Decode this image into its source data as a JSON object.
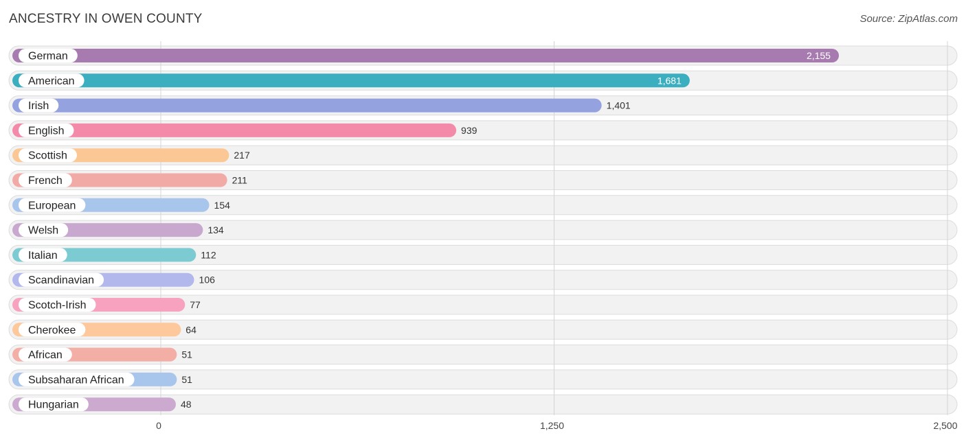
{
  "header": {
    "title": "ANCESTRY IN OWEN COUNTY",
    "source": "Source: ZipAtlas.com"
  },
  "chart_data": {
    "type": "bar",
    "orientation": "horizontal",
    "title": "ANCESTRY IN OWEN COUNTY",
    "categories": [
      "German",
      "American",
      "Irish",
      "English",
      "Scottish",
      "French",
      "European",
      "Welsh",
      "Italian",
      "Scandinavian",
      "Scotch-Irish",
      "Cherokee",
      "African",
      "Subsaharan African",
      "Hungarian"
    ],
    "values": [
      2155,
      1681,
      1401,
      939,
      217,
      211,
      154,
      134,
      112,
      106,
      77,
      64,
      51,
      51,
      48
    ],
    "value_labels": [
      "2,155",
      "1,681",
      "1,401",
      "939",
      "217",
      "211",
      "154",
      "134",
      "112",
      "106",
      "77",
      "64",
      "51",
      "51",
      "48"
    ],
    "colors": [
      "#a87bb0",
      "#3bafbf",
      "#94a2e0",
      "#f48aaa",
      "#fbc895",
      "#f2aaa6",
      "#a8c6ec",
      "#c9a8d0",
      "#7ccbd2",
      "#b2b8ec",
      "#f7a2be",
      "#fcc89c",
      "#f3aea6",
      "#a8c6ec",
      "#ccaad0"
    ],
    "xlim": [
      0,
      2500
    ],
    "ticks": [
      0,
      1250,
      2500
    ],
    "tick_labels": [
      "0",
      "1,250",
      "2,500"
    ],
    "xlabel": "",
    "ylabel": "",
    "grid": true
  }
}
